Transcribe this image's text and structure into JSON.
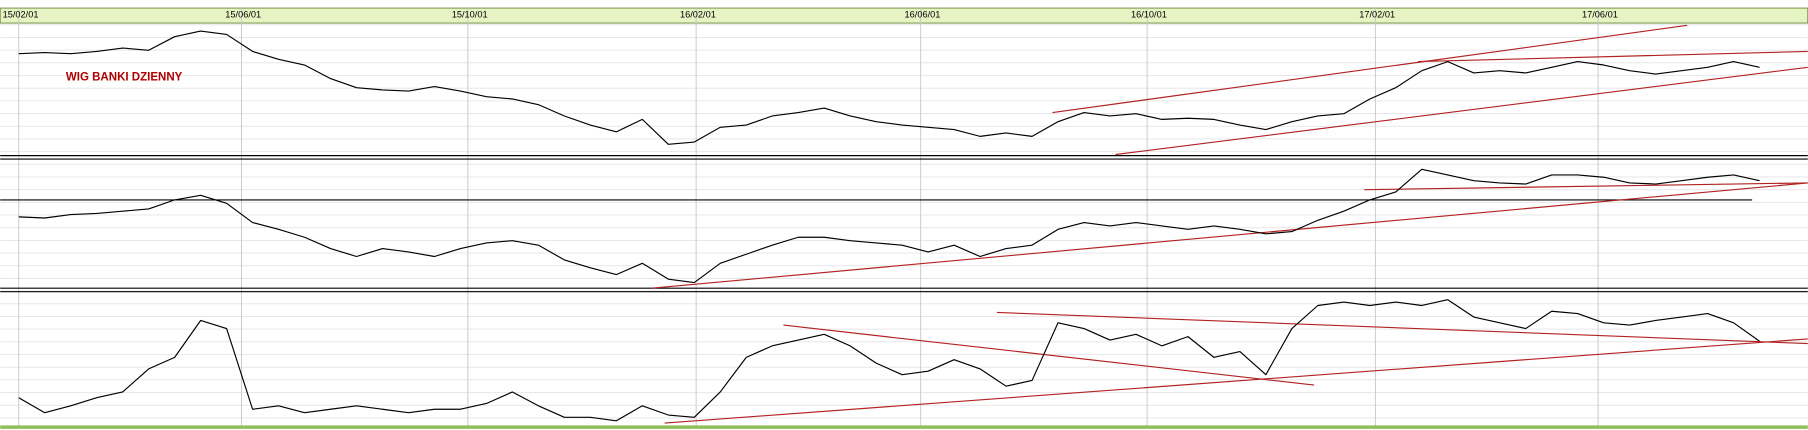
{
  "chart_data": [
    {
      "type": "line",
      "annotation": "WIG BANKI  DZIENNY",
      "xlim": [
        -10,
        964
      ],
      "ylim": [
        0,
        115
      ],
      "xticks": [
        {
          "value": 0,
          "label": "15/02/01"
        },
        {
          "value": 120,
          "label": "15/06/01"
        },
        {
          "value": 242,
          "label": "15/10/01"
        },
        {
          "value": 365,
          "label": "16/02/01"
        },
        {
          "value": 486,
          "label": "16/06/01"
        },
        {
          "value": 608,
          "label": "16/10/01"
        },
        {
          "value": 731,
          "label": "17/02/01"
        },
        {
          "value": 851,
          "label": "17/06/01"
        }
      ],
      "x": [
        0,
        14,
        28,
        42,
        56,
        70,
        84,
        98,
        112,
        126,
        140,
        154,
        168,
        182,
        196,
        210,
        224,
        238,
        252,
        266,
        280,
        294,
        308,
        322,
        336,
        350,
        364,
        378,
        392,
        406,
        420,
        434,
        448,
        462,
        476,
        490,
        504,
        518,
        532,
        546,
        560,
        574,
        588,
        602,
        616,
        630,
        644,
        658,
        672,
        686,
        700,
        714,
        728,
        742,
        756,
        770,
        784,
        798,
        812,
        826,
        840,
        854,
        868,
        882,
        896,
        910,
        924,
        938
      ],
      "series": [
        {
          "color": "#000000",
          "values": [
            90,
            91,
            90,
            92,
            95,
            93,
            105,
            110,
            107,
            92,
            85,
            80,
            68,
            60,
            58,
            57,
            61,
            57,
            52,
            50,
            45,
            35,
            27,
            21,
            32,
            10,
            12,
            25,
            27,
            35,
            38,
            42,
            35,
            30,
            27,
            25,
            23,
            17,
            20,
            17,
            30,
            38,
            35,
            37,
            32,
            33,
            32,
            27,
            23,
            30,
            35,
            37,
            50,
            60,
            75,
            83,
            73,
            75,
            73,
            78,
            83,
            80,
            75,
            72,
            75,
            78,
            83,
            78
          ]
        }
      ],
      "trend_lines": [
        {
          "color": "#b22222",
          "x": [
            557,
            899
          ],
          "values": [
            38,
            115
          ]
        },
        {
          "color": "#b22222",
          "x": [
            591,
            964
          ],
          "values": [
            1,
            78
          ]
        },
        {
          "color": "#b22222",
          "x": [
            754,
            964
          ],
          "values": [
            83,
            92
          ]
        }
      ]
    },
    {
      "type": "line",
      "xlim": [
        -10,
        964
      ],
      "ylim": [
        0,
        112
      ],
      "x": [
        0,
        14,
        28,
        42,
        56,
        70,
        84,
        98,
        112,
        126,
        140,
        154,
        168,
        182,
        196,
        210,
        224,
        238,
        252,
        266,
        280,
        294,
        308,
        322,
        336,
        350,
        364,
        378,
        392,
        406,
        420,
        434,
        448,
        462,
        476,
        490,
        504,
        518,
        532,
        546,
        560,
        574,
        588,
        602,
        616,
        630,
        644,
        658,
        672,
        686,
        700,
        714,
        728,
        742,
        756,
        770,
        784,
        798,
        812,
        826,
        840,
        854,
        868,
        882,
        896,
        910,
        924,
        938
      ],
      "series": [
        {
          "color": "#000000",
          "values": [
            63,
            62,
            65,
            66,
            68,
            70,
            78,
            82,
            75,
            58,
            52,
            45,
            35,
            28,
            35,
            32,
            28,
            35,
            40,
            42,
            38,
            25,
            18,
            12,
            22,
            8,
            5,
            22,
            30,
            38,
            45,
            45,
            42,
            40,
            38,
            32,
            38,
            28,
            35,
            38,
            52,
            58,
            55,
            58,
            55,
            52,
            55,
            52,
            48,
            50,
            60,
            68,
            78,
            85,
            105,
            100,
            95,
            93,
            92,
            100,
            100,
            98,
            93,
            92,
            95,
            98,
            100,
            95
          ]
        }
      ],
      "trend_lines": [
        {
          "color": "#000000",
          "x": [
            -10,
            934
          ],
          "values": [
            78,
            78
          ]
        },
        {
          "color": "#b22222",
          "x": [
            341,
            964
          ],
          "values": [
            0,
            93
          ]
        },
        {
          "color": "#b22222",
          "x": [
            725,
            964
          ],
          "values": [
            87,
            93
          ]
        }
      ]
    },
    {
      "type": "line",
      "xlim": [
        -10,
        964
      ],
      "ylim": [
        0,
        112
      ],
      "x": [
        0,
        14,
        28,
        42,
        56,
        70,
        84,
        98,
        112,
        126,
        140,
        154,
        168,
        182,
        196,
        210,
        224,
        238,
        252,
        266,
        280,
        294,
        308,
        322,
        336,
        350,
        364,
        378,
        392,
        406,
        420,
        434,
        448,
        462,
        476,
        490,
        504,
        518,
        532,
        546,
        560,
        574,
        588,
        602,
        616,
        630,
        644,
        658,
        672,
        686,
        700,
        714,
        728,
        742,
        756,
        770,
        784,
        798,
        812,
        826,
        840,
        854,
        868,
        882,
        896,
        910,
        924,
        938
      ],
      "series": [
        {
          "color": "#000000",
          "values": [
            23,
            10,
            16,
            23,
            28,
            48,
            58,
            90,
            83,
            13,
            16,
            10,
            13,
            16,
            13,
            10,
            13,
            13,
            18,
            28,
            16,
            6,
            6,
            3,
            16,
            8,
            6,
            28,
            58,
            68,
            73,
            78,
            68,
            53,
            43,
            46,
            56,
            48,
            33,
            38,
            88,
            83,
            73,
            78,
            68,
            76,
            58,
            63,
            43,
            83,
            103,
            106,
            103,
            106,
            103,
            108,
            93,
            88,
            83,
            98,
            96,
            88,
            86,
            90,
            93,
            96,
            88,
            72
          ]
        }
      ],
      "trend_lines": [
        {
          "color": "#b22222",
          "x": [
            348,
            964
          ],
          "values": [
            1,
            74
          ]
        },
        {
          "color": "#b22222",
          "x": [
            412,
            698
          ],
          "values": [
            86,
            34
          ]
        },
        {
          "color": "#b22222",
          "x": [
            527,
            964
          ],
          "values": [
            97,
            70
          ]
        }
      ]
    }
  ]
}
